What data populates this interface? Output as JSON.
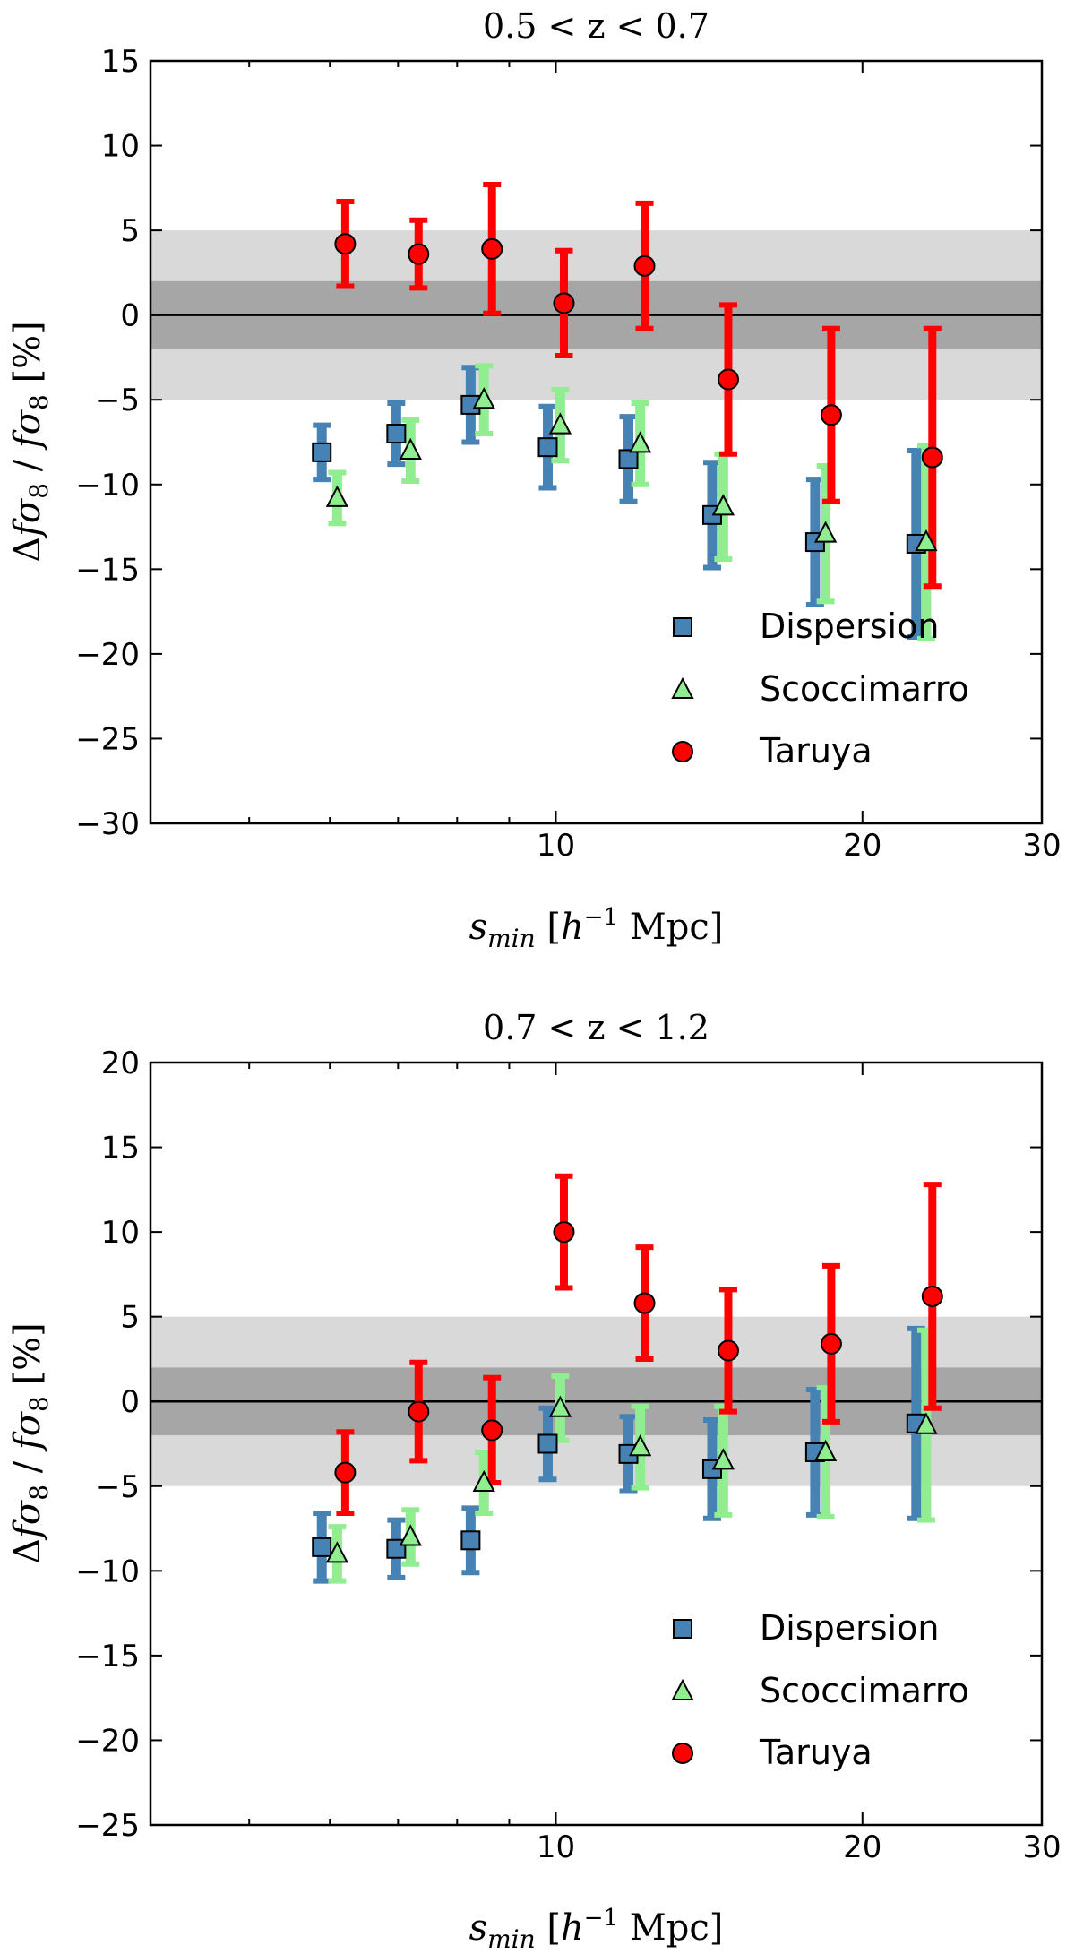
{
  "chart_data": [
    {
      "type": "scatter",
      "title": "0.5 < z < 0.7",
      "xlabel": "s_min [h^-1 Mpc]",
      "ylabel": "Δfσ8 / fσ8 [%]",
      "xscale": "log",
      "xlim": [
        4,
        30
      ],
      "ylim": [
        -30,
        15
      ],
      "xticks": [
        10,
        20,
        30
      ],
      "xtick_labels": [
        "10",
        "20",
        "30"
      ],
      "yticks": [
        -30,
        -25,
        -20,
        -15,
        -10,
        -5,
        0,
        5,
        10,
        15
      ],
      "ytick_labels": [
        "−30",
        "−25",
        "−20",
        "−15",
        "−10",
        "−5",
        "0",
        "5",
        "10",
        "15"
      ],
      "bands": [
        {
          "range": [
            -5,
            5
          ],
          "color": "#d9d9d9"
        },
        {
          "range": [
            -2,
            2
          ],
          "color": "#a6a6a6"
        }
      ],
      "reference_line": 0,
      "legend_position": "lower right",
      "series": [
        {
          "name": "Dispersion",
          "marker": "square",
          "color": "#4682b4",
          "x": [
            6.0,
            7.1,
            8.4,
            10.0,
            12.0,
            14.5,
            18.3,
            23.0
          ],
          "y": [
            -8.1,
            -7.0,
            -5.3,
            -7.8,
            -8.5,
            -11.8,
            -13.4,
            -13.5
          ],
          "yerr_low": [
            1.6,
            1.8,
            2.2,
            2.4,
            2.5,
            3.1,
            3.7,
            5.5
          ],
          "yerr_high": [
            1.6,
            1.8,
            2.2,
            2.4,
            2.5,
            3.1,
            3.7,
            5.5
          ]
        },
        {
          "name": "Scoccimarro",
          "marker": "triangle",
          "color": "#90ee90",
          "x": [
            6.1,
            7.2,
            8.5,
            10.1,
            12.1,
            14.6,
            18.4,
            23.1
          ],
          "y": [
            -10.8,
            -8.0,
            -5.0,
            -6.5,
            -7.6,
            -11.3,
            -12.9,
            -13.4
          ],
          "yerr_low": [
            1.5,
            1.8,
            2.0,
            2.1,
            2.4,
            3.1,
            4.0,
            5.7
          ],
          "yerr_high": [
            1.5,
            1.8,
            2.0,
            2.1,
            2.4,
            3.1,
            4.0,
            5.7
          ]
        },
        {
          "name": "Taruya",
          "marker": "circle",
          "color": "#ff0000",
          "x": [
            6.1,
            7.2,
            8.5,
            10.0,
            12.0,
            14.5,
            18.3,
            23.0
          ],
          "y": [
            4.2,
            3.6,
            3.9,
            0.7,
            2.9,
            -3.8,
            -5.9,
            -8.4
          ],
          "yerr_low": [
            2.5,
            2.0,
            3.8,
            3.1,
            3.7,
            4.4,
            5.1,
            7.6
          ],
          "yerr_high": [
            2.5,
            2.0,
            3.8,
            3.1,
            3.7,
            4.4,
            5.1,
            7.6
          ]
        }
      ]
    },
    {
      "type": "scatter",
      "title": "0.7 < z < 1.2",
      "xlabel": "s_min [h^-1 Mpc]",
      "ylabel": "Δfσ8 / fσ8 [%]",
      "xscale": "log",
      "xlim": [
        4,
        30
      ],
      "ylim": [
        -25,
        20
      ],
      "xticks": [
        10,
        20,
        30
      ],
      "xtick_labels": [
        "10",
        "20",
        "30"
      ],
      "yticks": [
        -25,
        -20,
        -15,
        -10,
        -5,
        0,
        5,
        10,
        15,
        20
      ],
      "ytick_labels": [
        "−25",
        "−20",
        "−15",
        "−10",
        "−5",
        "0",
        "5",
        "10",
        "15",
        "20"
      ],
      "bands": [
        {
          "range": [
            -5,
            5
          ],
          "color": "#d9d9d9"
        },
        {
          "range": [
            -2,
            2
          ],
          "color": "#a6a6a6"
        }
      ],
      "reference_line": 0,
      "legend_position": "lower right",
      "series": [
        {
          "name": "Dispersion",
          "marker": "square",
          "color": "#4682b4",
          "x": [
            6.0,
            7.1,
            8.4,
            10.0,
            12.0,
            14.5,
            18.3,
            23.0
          ],
          "y": [
            -8.6,
            -8.7,
            -8.2,
            -2.5,
            -3.1,
            -4.0,
            -3.0,
            -1.3
          ],
          "yerr_low": [
            2.0,
            1.7,
            1.9,
            2.1,
            2.2,
            2.9,
            3.7,
            5.6
          ],
          "yerr_high": [
            2.0,
            1.7,
            1.9,
            2.1,
            2.2,
            2.9,
            3.7,
            5.6
          ]
        },
        {
          "name": "Scoccimarro",
          "marker": "triangle",
          "color": "#90ee90",
          "x": [
            6.1,
            7.2,
            8.5,
            10.1,
            12.1,
            14.6,
            18.4,
            23.1
          ],
          "y": [
            -9.0,
            -8.0,
            -4.8,
            -0.4,
            -2.7,
            -3.5,
            -3.0,
            -1.4
          ],
          "yerr_low": [
            1.6,
            1.6,
            1.8,
            1.9,
            2.4,
            3.2,
            3.8,
            5.6
          ],
          "yerr_high": [
            1.6,
            1.6,
            1.8,
            1.9,
            2.4,
            3.2,
            3.8,
            5.6
          ]
        },
        {
          "name": "Taruya",
          "marker": "circle",
          "color": "#ff0000",
          "x": [
            6.1,
            7.2,
            8.5,
            10.0,
            12.0,
            14.5,
            18.3,
            23.0
          ],
          "y": [
            -4.2,
            -0.6,
            -1.7,
            10.0,
            5.8,
            3.0,
            3.4,
            6.2
          ],
          "yerr_low": [
            2.4,
            2.9,
            3.1,
            3.3,
            3.3,
            3.6,
            4.6,
            6.6
          ],
          "yerr_high": [
            2.4,
            2.9,
            3.1,
            3.3,
            3.3,
            3.6,
            4.6,
            6.6
          ]
        }
      ]
    }
  ]
}
